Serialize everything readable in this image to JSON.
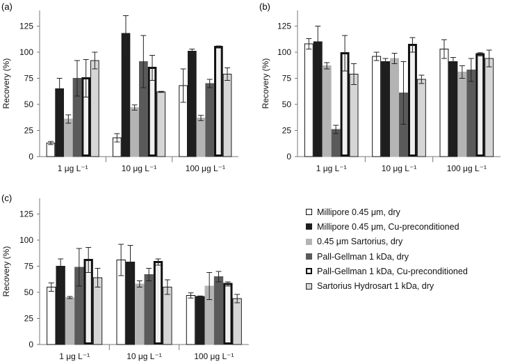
{
  "chart_data": [
    {
      "type": "bar",
      "panel": "(a)",
      "categories": [
        "1 μg L⁻¹",
        "10 μg L⁻¹",
        "100 μg L⁻¹"
      ],
      "ylabel": "Recovery (%)",
      "ylim": [
        0,
        140
      ],
      "yticks": [
        0,
        25,
        50,
        75,
        100,
        125
      ],
      "series": [
        {
          "name": "Millipore 0.45 μm, dry",
          "values": [
            13,
            18,
            68
          ],
          "errors": [
            1.5,
            4,
            16
          ]
        },
        {
          "name": "Millipore 0.45 μm, Cu-preconditioned",
          "values": [
            65,
            118,
            101
          ],
          "errors": [
            10,
            17,
            2
          ]
        },
        {
          "name": "0.45 μm Sartorius, dry",
          "values": [
            36,
            47,
            37
          ],
          "errors": [
            4,
            2.5,
            2.5
          ]
        },
        {
          "name": "Pall-Gellman 1 kDa, dry",
          "values": [
            75,
            91,
            70
          ],
          "errors": [
            17,
            25,
            4
          ]
        },
        {
          "name": "Pall-Gellman 1 kDa, Cu-preconditioned",
          "values": [
            75,
            85,
            105
          ],
          "errors": [
            18,
            12,
            1
          ]
        },
        {
          "name": "Sartorius Hydrosart 1 kDa, dry",
          "values": [
            92,
            62,
            79
          ],
          "errors": [
            8,
            0.5,
            6
          ]
        }
      ]
    },
    {
      "type": "bar",
      "panel": "(b)",
      "categories": [
        "1 μg L⁻¹",
        "10 μg L⁻¹",
        "100 μg L⁻¹"
      ],
      "ylabel": "Recovery (%)",
      "ylim": [
        0,
        140
      ],
      "yticks": [
        0,
        25,
        50,
        75,
        100,
        125
      ],
      "series": [
        {
          "name": "Millipore 0.45 μm, dry",
          "values": [
            108,
            96,
            103
          ],
          "errors": [
            5,
            4,
            9
          ]
        },
        {
          "name": "Millipore 0.45 μm, Cu-preconditioned",
          "values": [
            110,
            91,
            91
          ],
          "errors": [
            15,
            3,
            4
          ]
        },
        {
          "name": "0.45 μm Sartorius, dry",
          "values": [
            87,
            94,
            81
          ],
          "errors": [
            3,
            5,
            6
          ]
        },
        {
          "name": "Pall-Gellman 1 kDa, dry",
          "values": [
            26,
            61,
            83
          ],
          "errors": [
            4,
            30,
            11
          ]
        },
        {
          "name": "Pall-Gellman 1 kDa, Cu-preconditioned",
          "values": [
            99,
            107,
            98
          ],
          "errors": [
            17,
            7,
            1.5
          ]
        },
        {
          "name": "Sartorius Hydrosart 1 kDa, dry",
          "values": [
            79,
            74,
            94
          ],
          "errors": [
            10,
            4,
            8
          ]
        }
      ]
    },
    {
      "type": "bar",
      "panel": "(c)",
      "categories": [
        "1 μg L⁻¹",
        "10 μg L⁻¹",
        "100 μg L⁻¹"
      ],
      "ylabel": "Recovery (%)",
      "ylim": [
        0,
        140
      ],
      "yticks": [
        0,
        25,
        50,
        75,
        100,
        125
      ],
      "series": [
        {
          "name": "Millipore 0.45 μm, dry",
          "values": [
            55,
            81,
            47
          ],
          "errors": [
            4,
            15,
            2.5
          ]
        },
        {
          "name": "Millipore 0.45 μm, Cu-preconditioned",
          "values": [
            75,
            79,
            46
          ],
          "errors": [
            7,
            16,
            0.5
          ]
        },
        {
          "name": "0.45 μm Sartorius, dry",
          "values": [
            45,
            58,
            56
          ],
          "errors": [
            1,
            3,
            13
          ]
        },
        {
          "name": "Pall-Gellman 1 kDa, dry",
          "values": [
            74,
            67,
            65
          ],
          "errors": [
            18,
            6,
            5
          ]
        },
        {
          "name": "Pall-Gellman 1 kDa, Cu-preconditioned",
          "values": [
            81,
            79,
            58
          ],
          "errors": [
            12,
            3,
            2
          ]
        },
        {
          "name": "Sartorius Hydrosart 1 kDa, dry",
          "values": [
            64,
            55,
            44
          ],
          "errors": [
            9,
            7,
            4
          ]
        }
      ]
    }
  ],
  "legend": {
    "items": [
      {
        "label": "Millipore 0.45 μm, dry",
        "fill": "#ffffff",
        "stroke": "#111111",
        "thick": false
      },
      {
        "label": "Millipore 0.45 μm, Cu-preconditioned",
        "fill": "#1e1e1e",
        "stroke": "#1e1e1e",
        "thick": false
      },
      {
        "label": "0.45 μm Sartorius, dry",
        "fill": "#b4b4b4",
        "stroke": "#b4b4b4",
        "thick": false
      },
      {
        "label": "Pall-Gellman 1 kDa, dry",
        "fill": "#5a5a5a",
        "stroke": "#5a5a5a",
        "thick": false
      },
      {
        "label": "Pall-Gellman 1 kDa, Cu-preconditioned",
        "fill": "#f0f0f0",
        "stroke": "#111111",
        "thick": true
      },
      {
        "label": "Sartorius Hydrosart 1 kDa, dry",
        "fill": "#d6d6d6",
        "stroke": "#1e1e1e",
        "thick": false
      }
    ]
  }
}
